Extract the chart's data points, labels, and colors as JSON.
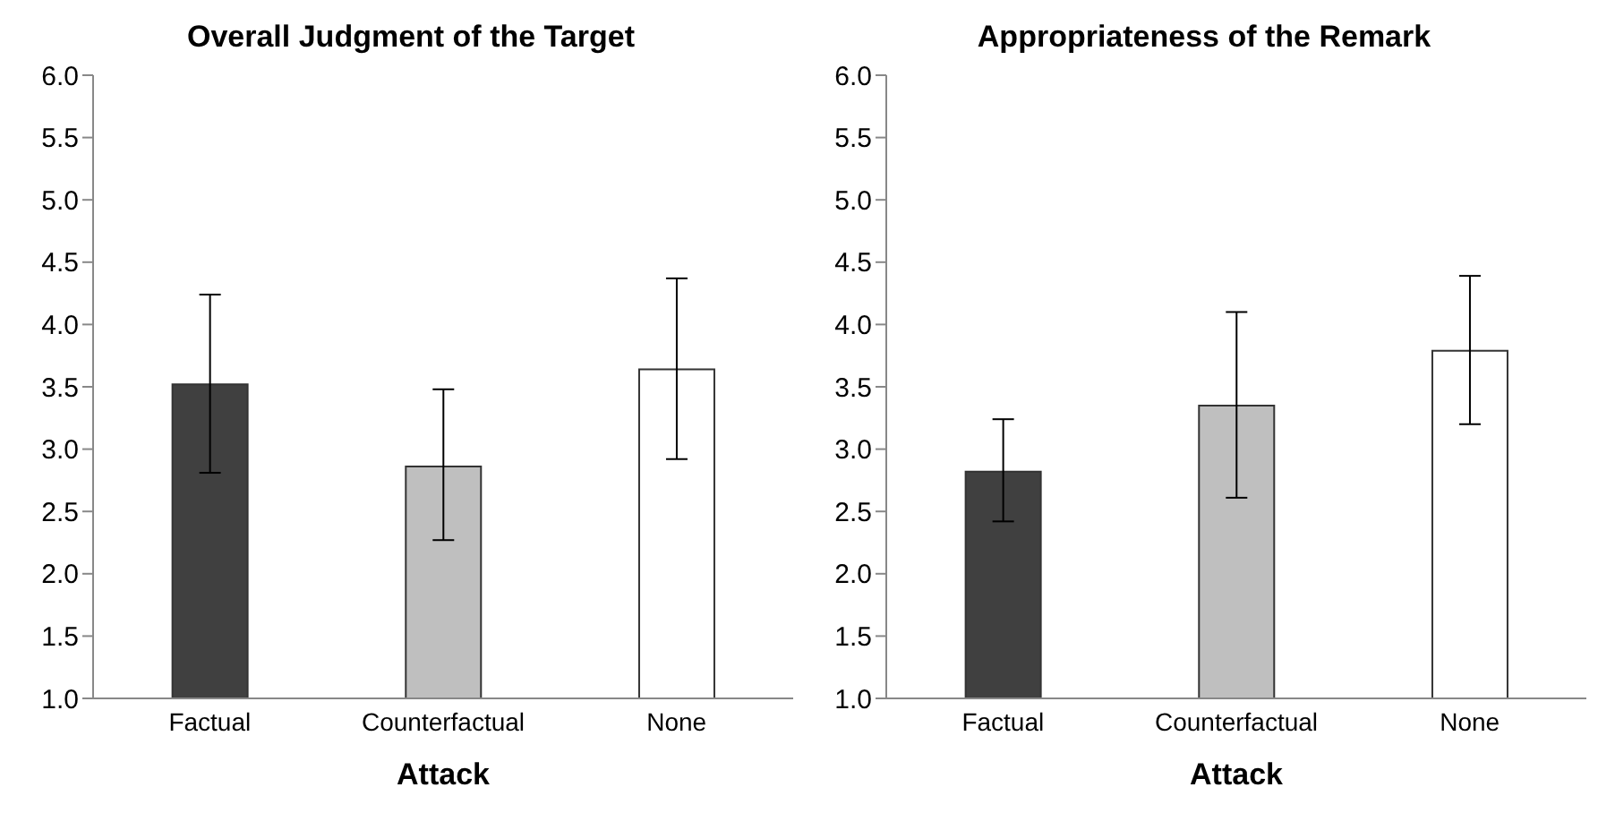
{
  "chart_data": [
    {
      "type": "bar",
      "title": "Overall Judgment of the Target",
      "xlabel": "Attack",
      "categories": [
        "Factual",
        "Counterfactual",
        "None"
      ],
      "values": [
        3.52,
        2.86,
        3.64
      ],
      "colors": [
        "#404040",
        "#bfbfbf",
        "#ffffff"
      ],
      "errors": [
        [
          2.81,
          4.24
        ],
        [
          2.27,
          3.48
        ],
        [
          2.92,
          4.37
        ]
      ],
      "ylim": [
        1.0,
        6.0
      ],
      "yticks": [
        {
          "value": 1,
          "label": "1.0"
        },
        {
          "value": 1.5,
          "label": "1.5"
        },
        {
          "value": 2,
          "label": "2.0"
        },
        {
          "value": 2.5,
          "label": "2.5"
        },
        {
          "value": 3,
          "label": "3.0"
        },
        {
          "value": 3.5,
          "label": "3.5"
        },
        {
          "value": 4,
          "label": "4.0"
        },
        {
          "value": 4.5,
          "label": "4.5"
        },
        {
          "value": 5,
          "label": "5.0"
        },
        {
          "value": 5.5,
          "label": "5.5"
        },
        {
          "value": 6,
          "label": "6.0"
        }
      ],
      "grid": false,
      "legend": false
    },
    {
      "type": "bar",
      "title": "Appropriateness of the Remark",
      "xlabel": "Attack",
      "categories": [
        "Factual",
        "Counterfactual",
        "None"
      ],
      "values": [
        2.82,
        3.35,
        3.79
      ],
      "colors": [
        "#404040",
        "#bfbfbf",
        "#ffffff"
      ],
      "errors": [
        [
          2.42,
          3.24
        ],
        [
          2.61,
          4.1
        ],
        [
          3.2,
          4.39
        ]
      ],
      "ylim": [
        1.0,
        6.0
      ],
      "yticks": [
        {
          "value": 1,
          "label": "1.0"
        },
        {
          "value": 1.5,
          "label": "1.5"
        },
        {
          "value": 2,
          "label": "2.0"
        },
        {
          "value": 2.5,
          "label": "2.5"
        },
        {
          "value": 3,
          "label": "3.0"
        },
        {
          "value": 3.5,
          "label": "3.5"
        },
        {
          "value": 4,
          "label": "4.0"
        },
        {
          "value": 4.5,
          "label": "4.5"
        },
        {
          "value": 5,
          "label": "5.0"
        },
        {
          "value": 5.5,
          "label": "5.5"
        },
        {
          "value": 6,
          "label": "6.0"
        }
      ],
      "grid": false,
      "legend": false
    }
  ]
}
